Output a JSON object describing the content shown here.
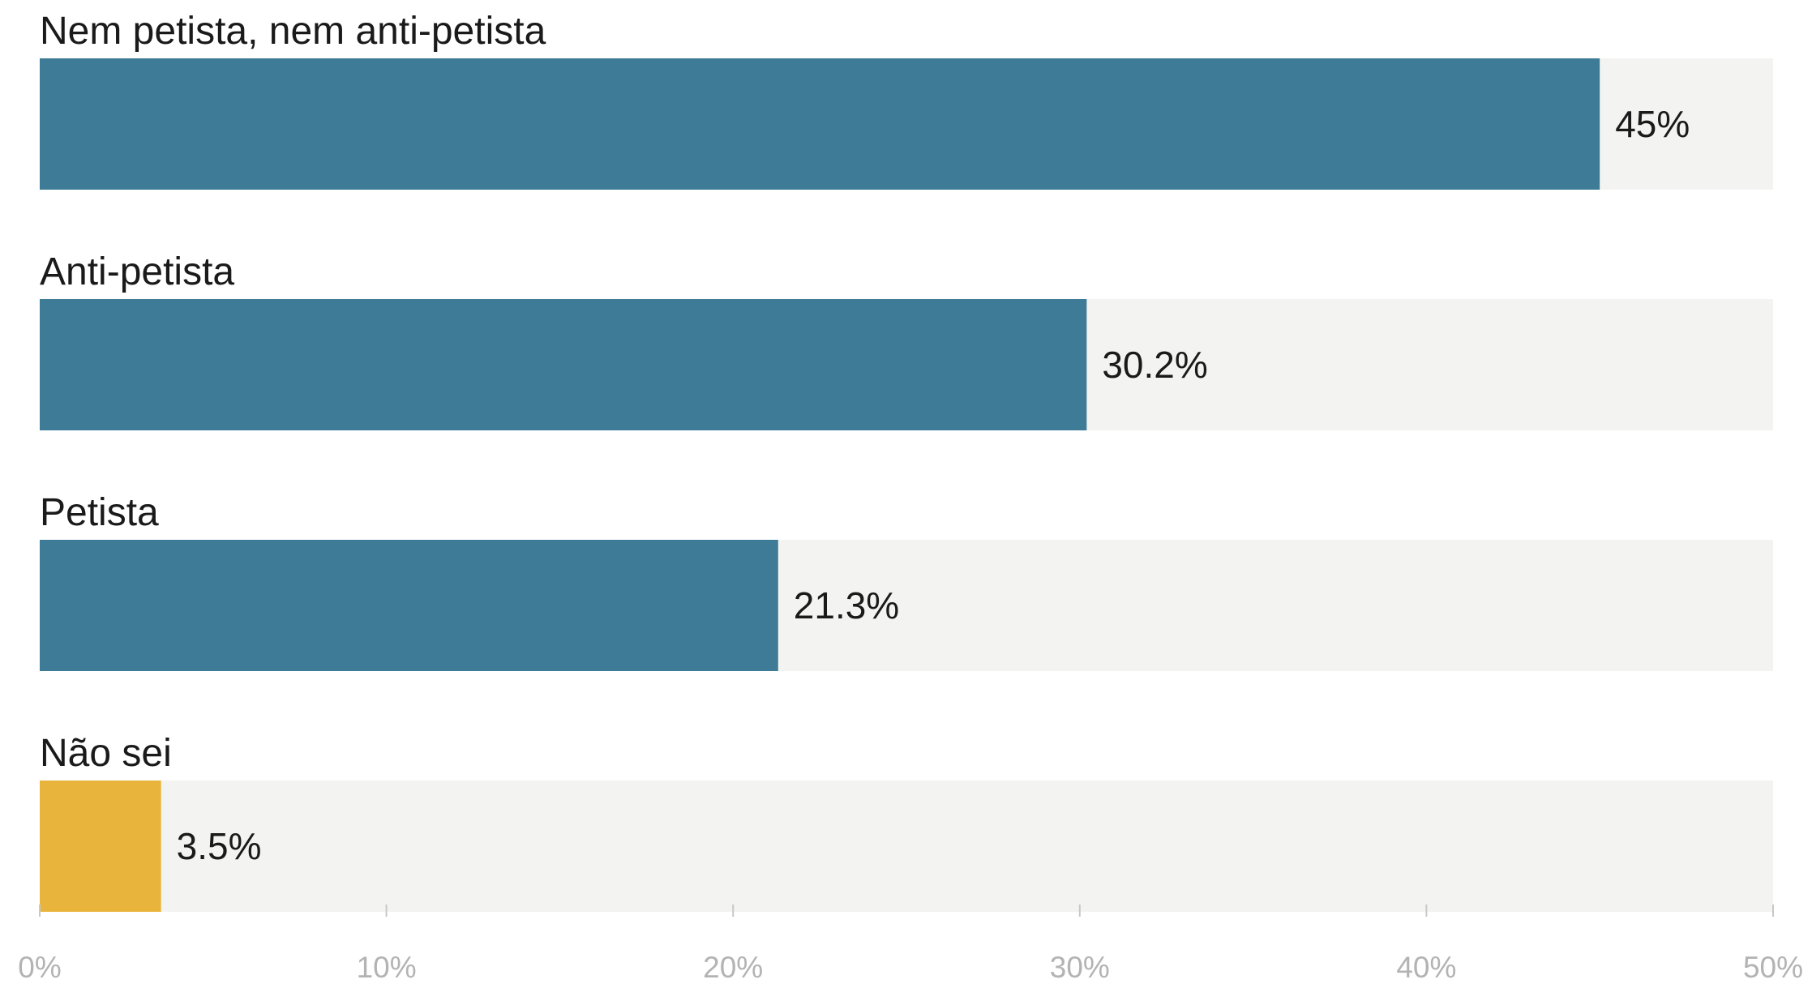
{
  "chart_data": {
    "type": "bar",
    "orientation": "horizontal",
    "categories": [
      "Nem petista, nem anti-petista",
      "Anti-petista",
      "Petista",
      "Não sei"
    ],
    "values": [
      45,
      30.2,
      21.3,
      3.5
    ],
    "value_labels": [
      "45%",
      "30.2%",
      "21.3%",
      "3.5%"
    ],
    "bar_colors": [
      "#3d7b96",
      "#3d7b96",
      "#3d7b96",
      "#e9b43c"
    ],
    "track_color": "#f3f3f1",
    "xlim": [
      0,
      50
    ],
    "xticks": [
      0,
      10,
      20,
      30,
      40,
      50
    ],
    "xtick_labels": [
      "0%",
      "10%",
      "20%",
      "30%",
      "40%",
      "50%"
    ],
    "title": "",
    "xlabel": "",
    "ylabel": "",
    "grid": false,
    "legend": "none"
  }
}
